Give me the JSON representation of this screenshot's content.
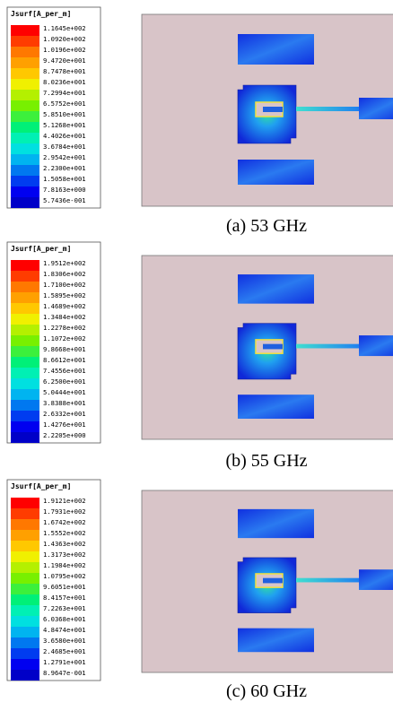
{
  "panels": [
    {
      "legend": {
        "title": "Jsurf[A_per_m]",
        "labels": [
          "1.1645e+002",
          "1.0920e+002",
          "1.0196e+002",
          "9.4720e+001",
          "8.7478e+001",
          "8.0236e+001",
          "7.2994e+001",
          "6.5752e+001",
          "5.8510e+001",
          "5.1268e+001",
          "4.4026e+001",
          "3.6784e+001",
          "2.9542e+001",
          "2.2300e+001",
          "1.5058e+001",
          "7.8163e+000",
          "5.7436e-001"
        ]
      },
      "caption": "(a) 53 GHz"
    },
    {
      "legend": {
        "title": "Jsurf[A_per_m]",
        "labels": [
          "1.9512e+002",
          "1.8306e+002",
          "1.7100e+002",
          "1.5895e+002",
          "1.4689e+002",
          "1.3484e+002",
          "1.2278e+002",
          "1.1072e+002",
          "9.8668e+001",
          "8.6612e+001",
          "7.4556e+001",
          "6.2500e+001",
          "5.0444e+001",
          "3.8388e+001",
          "2.6332e+001",
          "1.4276e+001",
          "2.2205e+000"
        ]
      },
      "caption": "(b) 55 GHz"
    },
    {
      "legend": {
        "title": "Jsurf[A_per_m]",
        "labels": [
          "1.9121e+002",
          "1.7931e+002",
          "1.6742e+002",
          "1.5552e+002",
          "1.4363e+002",
          "1.3173e+002",
          "1.1984e+002",
          "1.0795e+002",
          "9.6051e+001",
          "8.4157e+001",
          "7.2263e+001",
          "6.0368e+001",
          "4.8474e+001",
          "3.6580e+001",
          "2.4685e+001",
          "1.2791e+001",
          "8.9647e-001"
        ]
      },
      "caption": "(c) 60 GHz"
    }
  ]
}
